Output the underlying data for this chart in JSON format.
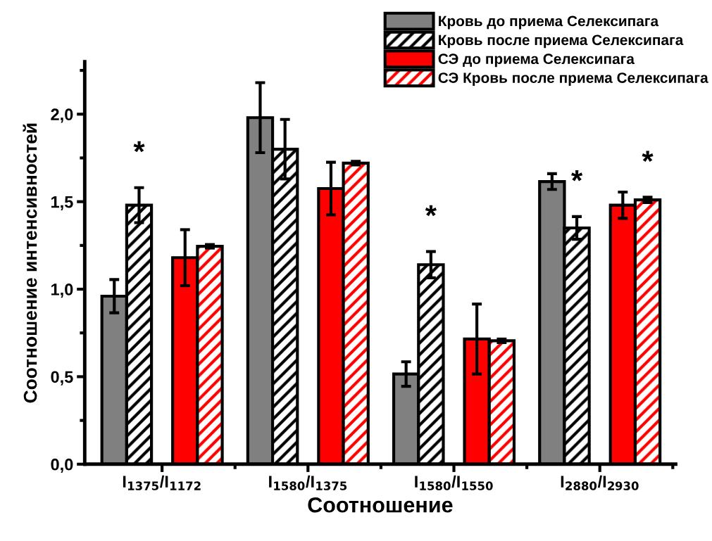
{
  "chart_data": {
    "type": "bar",
    "xlabel": "Соотношение",
    "ylabel": "Соотношение интенсивностей",
    "categories": [
      "I$_{1375}$/I$_{1172}$",
      "I$_{1580}$/I$_{1375}$",
      "I$_{1580}$/I$_{1550}$",
      "I$_{2880}$/I$_{2930}$"
    ],
    "series": [
      {
        "name": "Кровь до приема Селексипага",
        "color": "#808080",
        "values": [
          0.96,
          1.98,
          0.515,
          1.615
        ],
        "errors": [
          0.095,
          0.2,
          0.07,
          0.045
        ]
      },
      {
        "name": "Кровь после приема Селексипага",
        "color": "#000000",
        "values": [
          1.48,
          1.8,
          1.14,
          1.35
        ],
        "errors": [
          0.1,
          0.17,
          0.075,
          0.065
        ],
        "value_labels": [
          "*",
          null,
          "*",
          "*"
        ]
      },
      {
        "name": "СЭ до приема Селексипага",
        "color": "#ff0000",
        "values": [
          1.18,
          1.575,
          0.715,
          1.48
        ],
        "errors": [
          0.16,
          0.15,
          0.2,
          0.075
        ]
      },
      {
        "name": "СЭ Кровь после приема Селексипага",
        "color": "#ff0000",
        "values": [
          1.245,
          1.72,
          0.705,
          1.51
        ],
        "errors": [
          0.01,
          0.01,
          0.01,
          0.015
        ],
        "value_labels": [
          null,
          null,
          null,
          "*"
        ]
      }
    ],
    "ylim": [
      0,
      2.3
    ],
    "yticks": [
      {
        "value": 0,
        "label": "0,0"
      },
      {
        "value": 0.5,
        "label": "0,5"
      },
      {
        "value": 1,
        "label": "1,0"
      },
      {
        "value": 1.5,
        "label": "1,5"
      },
      {
        "value": 2,
        "label": "2,0"
      }
    ],
    "grid": false,
    "legend": "top right"
  }
}
